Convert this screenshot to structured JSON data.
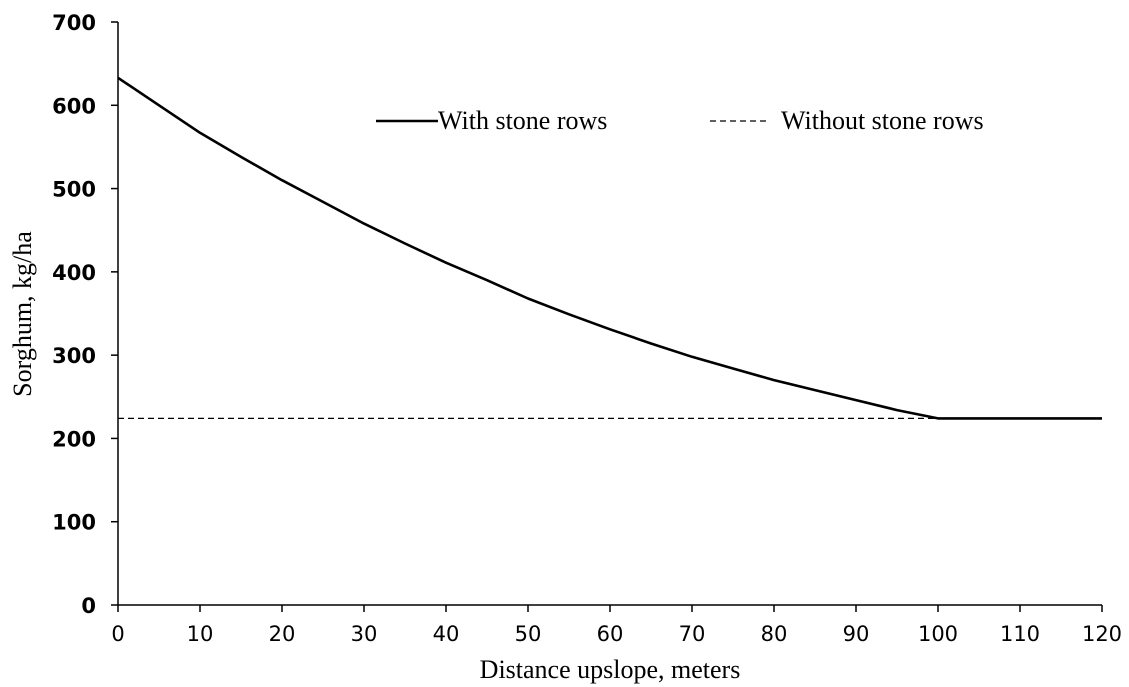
{
  "chart_data": {
    "type": "line",
    "title": "",
    "xlabel": "Distance upslope, meters",
    "ylabel": "Sorghum, kg/ha",
    "xlim": [
      0,
      120
    ],
    "ylim": [
      0,
      700
    ],
    "xticks": [
      0,
      10,
      20,
      30,
      40,
      50,
      60,
      70,
      80,
      90,
      100,
      110,
      120
    ],
    "yticks": [
      0,
      100,
      200,
      300,
      400,
      500,
      600,
      700
    ],
    "grid": false,
    "legend_position": "top",
    "series": [
      {
        "name": "With stone rows",
        "style": "solid",
        "color": "#000000",
        "x": [
          0,
          5,
          10,
          15,
          20,
          25,
          30,
          35,
          40,
          45,
          50,
          55,
          60,
          65,
          70,
          75,
          80,
          85,
          90,
          95,
          100,
          105,
          110,
          115,
          120
        ],
        "y": [
          633,
          600,
          567,
          538,
          510,
          484,
          458,
          434,
          411,
          390,
          368,
          349,
          331,
          314,
          298,
          284,
          270,
          258,
          246,
          234,
          224,
          224,
          224,
          224,
          224
        ]
      },
      {
        "name": "Without stone rows",
        "style": "dashed",
        "color": "#000000",
        "x": [
          0,
          120
        ],
        "y": [
          224,
          224
        ]
      }
    ]
  }
}
